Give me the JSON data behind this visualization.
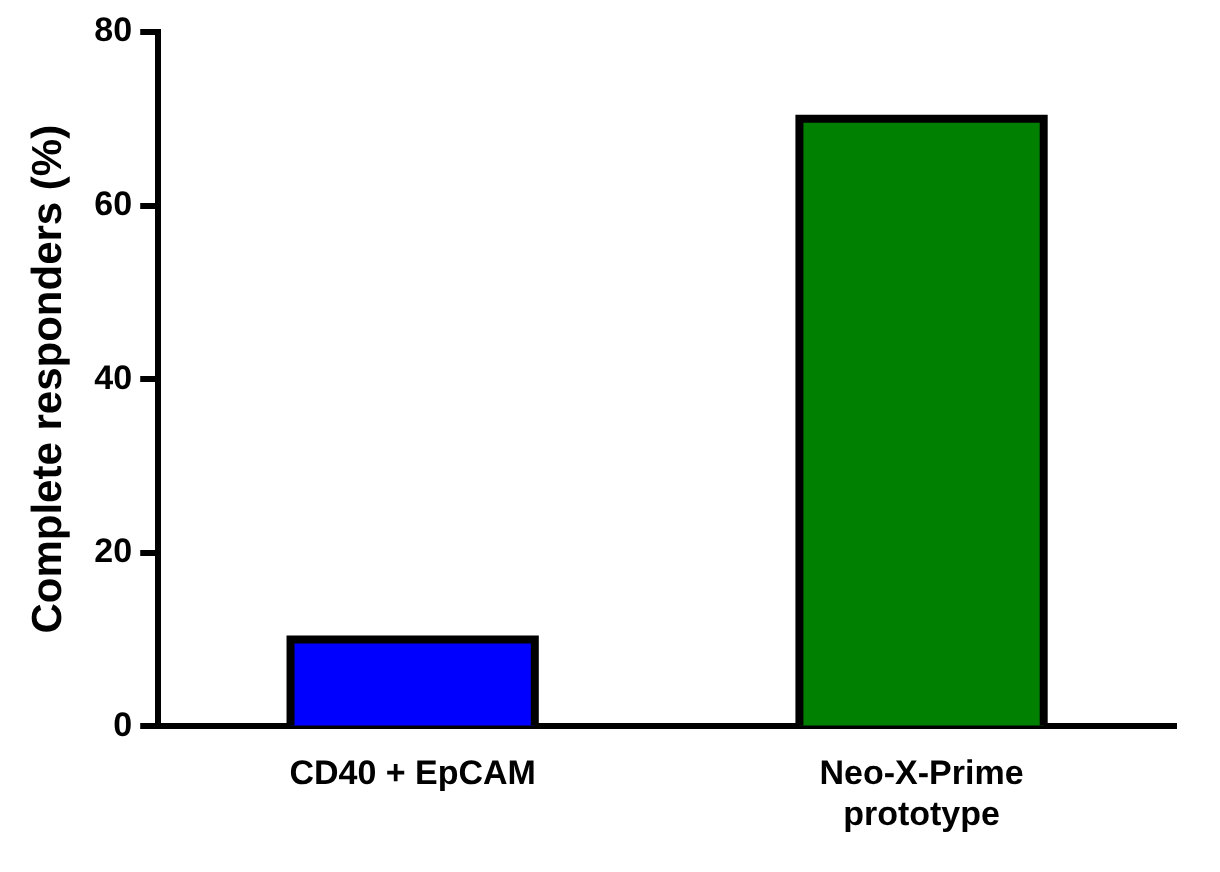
{
  "chart_data": {
    "type": "bar",
    "ylabel": "Complete responders (%)",
    "categories": [
      "CD40 + EpCAM",
      "Neo-X-Prime prototype"
    ],
    "values": [
      10,
      70
    ],
    "colors": [
      "#0000ff",
      "#008000"
    ],
    "ylim": [
      0,
      80
    ],
    "yticks": [
      0,
      20,
      40,
      60,
      80
    ],
    "grid": false,
    "legend": false
  }
}
